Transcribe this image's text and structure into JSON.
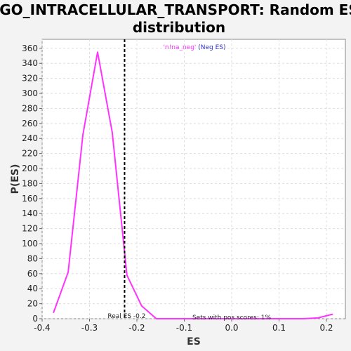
{
  "chart_data": {
    "type": "line",
    "title_line1": "GO_INTRACELLULAR_TRANSPORT: Random ES",
    "title_line2": "distribution",
    "xlabel": "ES",
    "ylabel": "P(ES)",
    "xlim": [
      -0.4,
      0.24
    ],
    "ylim": [
      0,
      372
    ],
    "xticks": [
      -0.4,
      -0.3,
      -0.2,
      -0.1,
      0.0,
      0.1,
      0.2
    ],
    "xtick_labels": [
      "-0.4",
      "-0.3",
      "-0.2",
      "-0.1",
      "0.0",
      "0.1",
      "0.2"
    ],
    "yticks": [
      0,
      20,
      40,
      60,
      80,
      100,
      120,
      140,
      160,
      180,
      200,
      220,
      240,
      260,
      280,
      300,
      320,
      340,
      360
    ],
    "grid": true,
    "series": [
      {
        "name": "'n!na_neg' (Neg ES)",
        "color": "#ff33ff",
        "x": [
          -0.376,
          -0.345,
          -0.314,
          -0.283,
          -0.252,
          -0.221,
          -0.19,
          -0.159,
          -0.128,
          -0.097,
          -0.066,
          -0.035,
          -0.004,
          0.027,
          0.058,
          0.089,
          0.12,
          0.151,
          0.182,
          0.213
        ],
        "y": [
          8,
          62,
          245,
          355,
          248,
          58,
          17,
          0,
          0,
          0,
          0,
          0,
          0,
          0,
          0,
          0,
          0,
          0,
          1,
          6
        ]
      }
    ],
    "real_es": {
      "x": -0.226,
      "label": "Real ES -0.2"
    },
    "annotation": "Sets with pos scores: 1%",
    "legend": {
      "placement": "top-center",
      "prefix": "'n!na_neg'",
      "suffix": " (Neg ES)",
      "prefix_color": "#ff33ff",
      "suffix_color": "#3333cc"
    }
  }
}
